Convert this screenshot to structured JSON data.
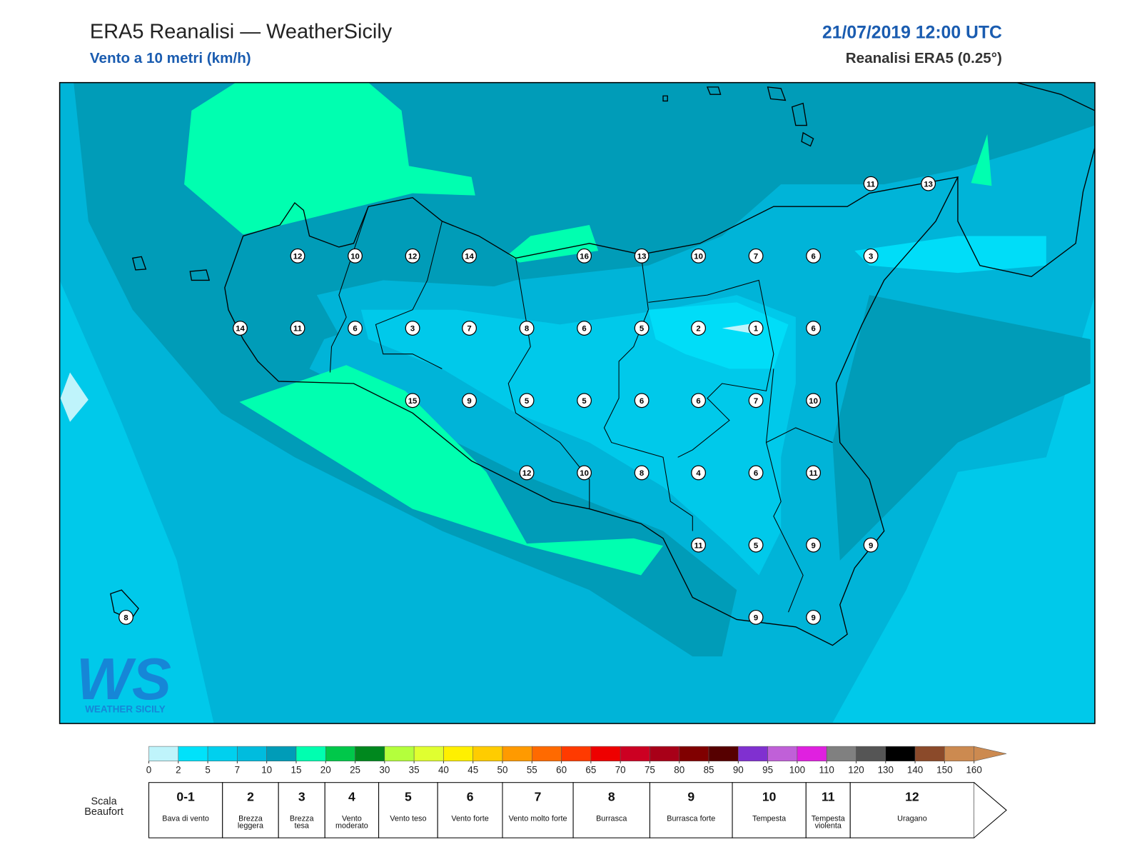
{
  "header": {
    "title": "ERA5 Reanalisi — WeatherSicily",
    "subtitle": "Vento a 10 metri (km/h)",
    "datetime": "21/07/2019 12:00 UTC",
    "source": "Reanalisi ERA5 (0.25°)"
  },
  "stations": [
    11,
    13,
    12,
    10,
    12,
    14,
    16,
    13,
    10,
    7,
    6,
    3,
    14,
    11,
    6,
    3,
    7,
    8,
    6,
    5,
    2,
    1,
    6,
    15,
    9,
    5,
    5,
    6,
    6,
    7,
    10,
    12,
    10,
    8,
    4,
    6,
    11,
    11,
    5,
    9,
    9,
    9,
    9,
    8
  ],
  "logo": {
    "mark": "WS",
    "text": "WEATHER SICILY"
  },
  "colorbar": {
    "ticks": [
      0,
      2,
      5,
      7,
      10,
      15,
      20,
      25,
      30,
      35,
      40,
      45,
      50,
      55,
      60,
      65,
      70,
      75,
      80,
      85,
      90,
      95,
      100,
      110,
      120,
      130,
      140,
      150,
      160
    ],
    "colors": [
      "#bff4fb",
      "#00e2fa",
      "#00d0ee",
      "#00bcde",
      "#009cb8",
      "#00ffb0",
      "#00c84a",
      "#00881e",
      "#b4ff3c",
      "#e0ff30",
      "#fff000",
      "#ffcc00",
      "#ff9a00",
      "#ff6a00",
      "#ff3a00",
      "#ee0000",
      "#cc0022",
      "#a80018",
      "#800000",
      "#560000",
      "#8030d0",
      "#c060d8",
      "#e020e0",
      "#808080",
      "#555555",
      "#000000",
      "#8b4a2a",
      "#cc8a50"
    ]
  },
  "beaufort": {
    "label": "Scala Beaufort",
    "classes": [
      {
        "number": "0-1",
        "name": "Bava di vento"
      },
      {
        "number": 2,
        "name": "Brezza leggera"
      },
      {
        "number": 3,
        "name": "Brezza tesa"
      },
      {
        "number": 4,
        "name": "Vento moderato"
      },
      {
        "number": 5,
        "name": "Vento teso"
      },
      {
        "number": 6,
        "name": "Vento forte"
      },
      {
        "number": 7,
        "name": "Vento molto forte"
      },
      {
        "number": 8,
        "name": "Burrasca"
      },
      {
        "number": 9,
        "name": "Burrasca forte"
      },
      {
        "number": 10,
        "name": "Tempesta"
      },
      {
        "number": 11,
        "name": "Tempesta violenta"
      },
      {
        "number": 12,
        "name": "Uragano"
      }
    ]
  }
}
